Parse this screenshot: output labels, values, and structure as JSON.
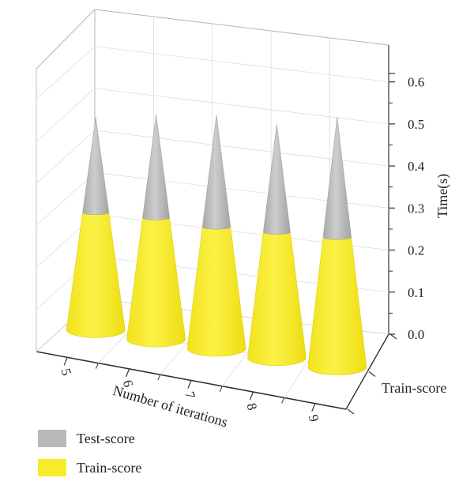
{
  "chart_data": {
    "type": "bar",
    "subtype": "3d-stacked-cone",
    "title": "",
    "categories": [
      "5",
      "6",
      "7",
      "8",
      "9"
    ],
    "series": [
      {
        "name": "Train-score",
        "values": [
          0.26,
          0.27,
          0.27,
          0.28,
          0.29
        ]
      },
      {
        "name": "Test-score",
        "values": [
          0.2,
          0.22,
          0.24,
          0.23,
          0.26
        ]
      }
    ],
    "xlabel": "Number of iterations",
    "ylabel": "Train-score",
    "zlabel": "Time(s)",
    "zlim": [
      0,
      0.6
    ],
    "z_ticks": [
      "0.0",
      "0.1",
      "0.2",
      "0.3",
      "0.4",
      "0.5",
      "0.6"
    ],
    "y_ticks": [
      "Train-score"
    ],
    "grid": true,
    "legend_position": "bottom-left",
    "colors": {
      "Train-score": "#f6ec2a",
      "Test-score": "#b9b9b9"
    }
  }
}
